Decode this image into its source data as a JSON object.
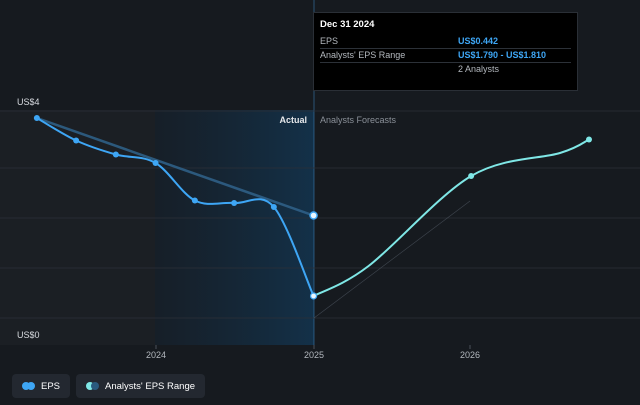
{
  "chart_data": {
    "type": "line",
    "y_axis": {
      "labels": [
        "US$4",
        "US$0"
      ],
      "ylim": [
        0,
        4
      ],
      "grid": true
    },
    "x_axis": {
      "tick_labels": [
        "2024",
        "2025",
        "2026"
      ]
    },
    "regions": {
      "actual_label": "Actual",
      "forecast_label": "Analysts Forecasts"
    },
    "series": [
      {
        "name": "EPS",
        "color": "#3ea6f5",
        "points": [
          {
            "x": "2023-03-31",
            "y": 4.0
          },
          {
            "x": "2023-06-30",
            "y": 3.55
          },
          {
            "x": "2023-09-30",
            "y": 3.27
          },
          {
            "x": "2023-12-31",
            "y": 3.1
          },
          {
            "x": "2024-03-31",
            "y": 2.35
          },
          {
            "x": "2024-06-30",
            "y": 2.3
          },
          {
            "x": "2024-09-30",
            "y": 2.22
          },
          {
            "x": "2024-12-31",
            "y": 0.44
          }
        ]
      },
      {
        "name": "Analysts' EPS Range",
        "color": "#7fe7e6",
        "points": [
          {
            "x": "2024-12-31",
            "y": 0.44
          },
          {
            "x": "2025-12-31",
            "y": 2.84
          },
          {
            "x": "2026-09-30",
            "y": 3.57
          }
        ]
      },
      {
        "name": "EPS trend",
        "color": "#2f5f86",
        "points": [
          {
            "x": "2023-03-31",
            "y": 4.0
          },
          {
            "x": "2024-12-31",
            "y": 2.05
          }
        ]
      }
    ],
    "highlight_point": {
      "x": "2024-12-31",
      "y": 2.05
    }
  },
  "tooltip": {
    "date": "Dec 31 2024",
    "rows": [
      {
        "label": "EPS",
        "value": "US$0.442"
      },
      {
        "label": "Analysts' EPS Range",
        "value": "US$1.790 - US$1.810"
      },
      {
        "label": "",
        "value": "2 Analysts"
      }
    ]
  },
  "legend": [
    {
      "label": "EPS",
      "colors": [
        "#3ea6f5",
        "#3ea6f5"
      ]
    },
    {
      "label": "Analysts' EPS Range",
      "colors": [
        "#7fe7e6",
        "#2a5a7e"
      ]
    }
  ]
}
